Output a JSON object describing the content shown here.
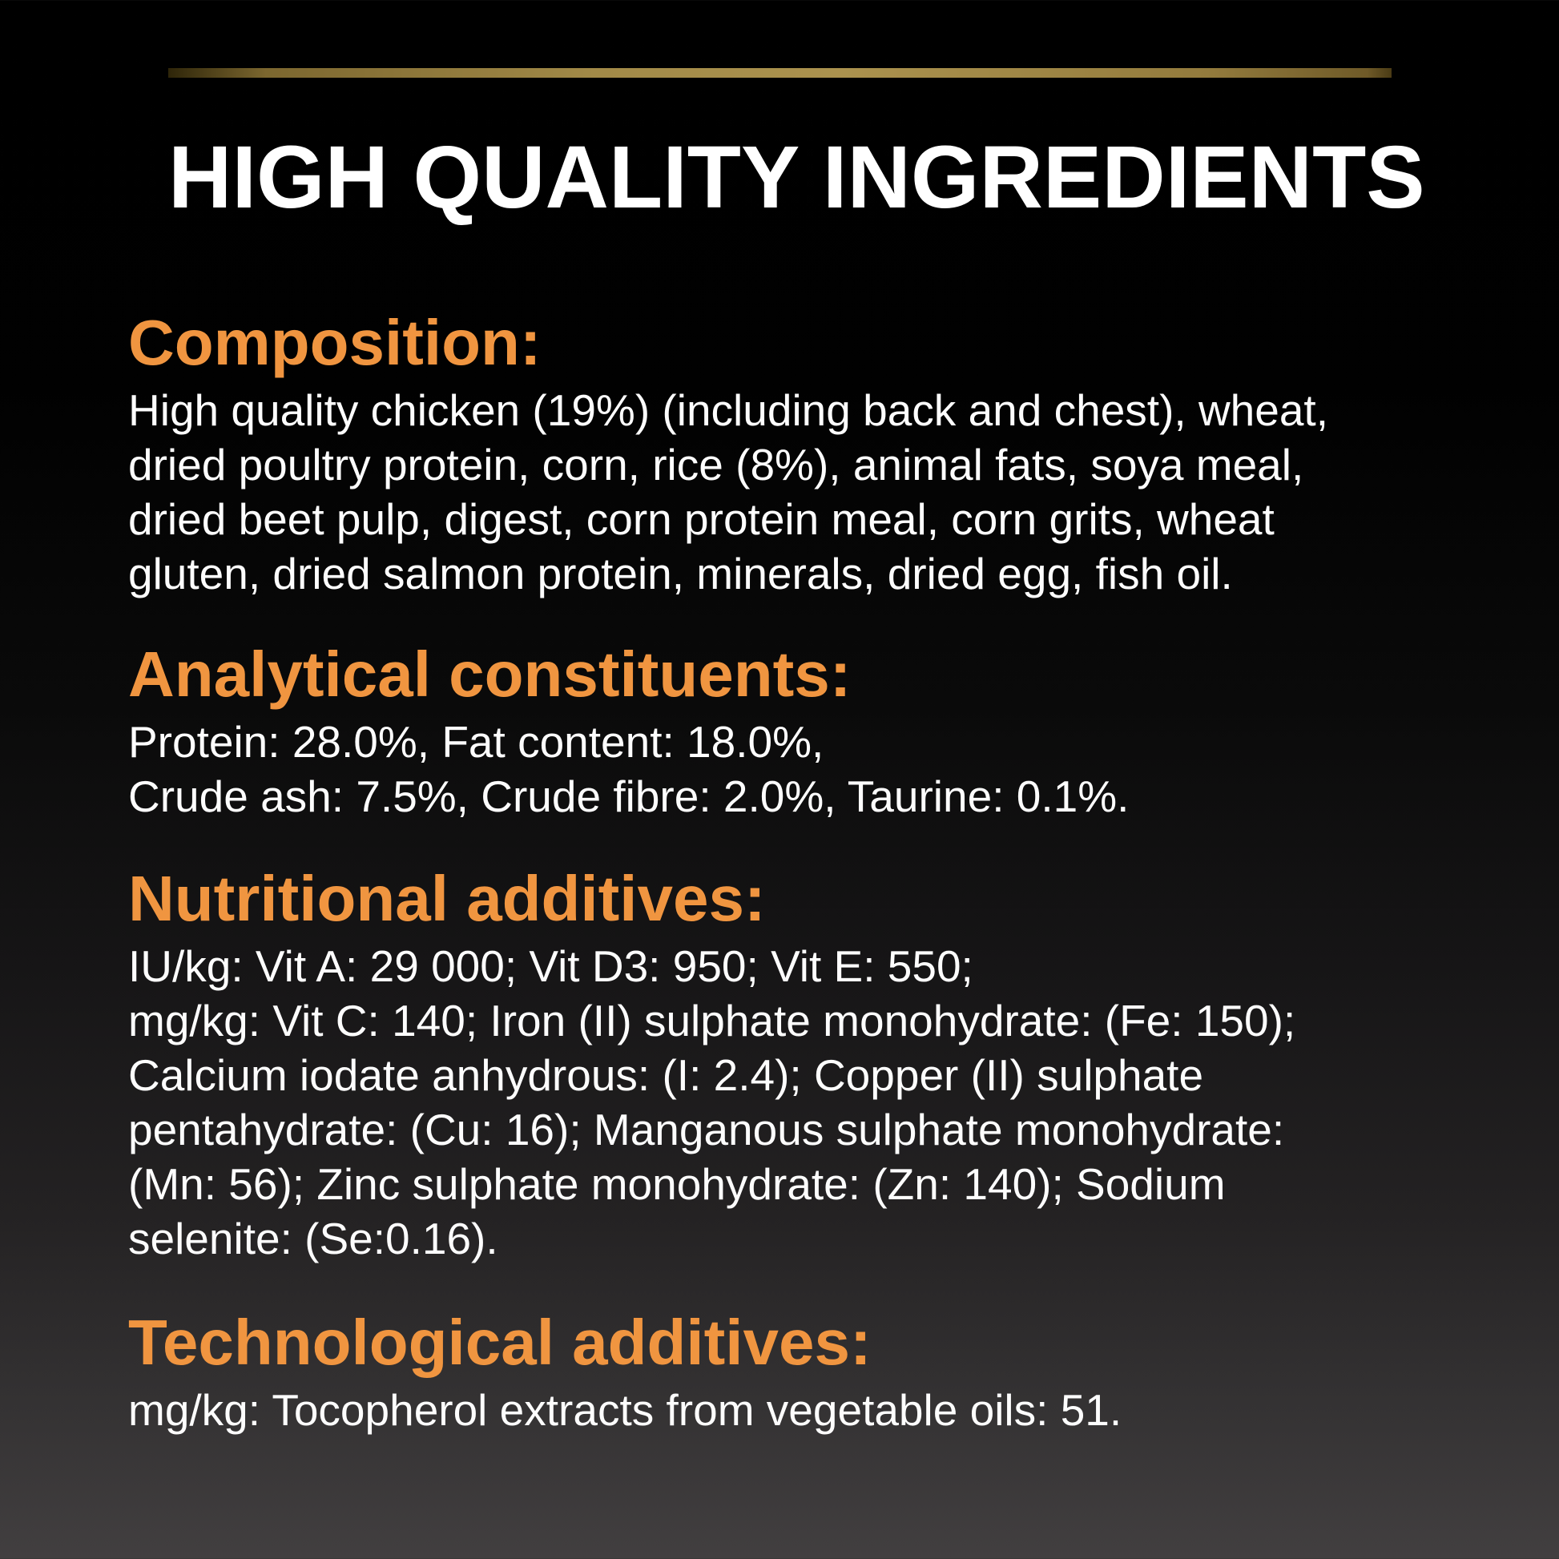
{
  "label": {
    "title": "HIGH QUALITY INGREDIENTS",
    "sections": [
      {
        "id": "composition",
        "heading": "Composition:",
        "body": "High quality chicken (19%) (including back and chest), wheat,\ndried poultry protein, corn, rice (8%), animal fats, soya meal,\ndried beet pulp, digest, corn protein meal, corn grits, wheat\ngluten, dried salmon protein, minerals, dried egg, fish oil."
      },
      {
        "id": "analytical-constituents",
        "heading": "Analytical constituents:",
        "body": "Protein: 28.0%, Fat content: 18.0%,\nCrude ash: 7.5%, Crude fibre: 2.0%, Taurine: 0.1%."
      },
      {
        "id": "nutritional-additives",
        "heading": "Nutritional additives:",
        "body": "IU/kg: Vit A: 29 000; Vit D3: 950; Vit E: 550;\nmg/kg: Vit C: 140; Iron (II) sulphate monohydrate: (Fe: 150);\nCalcium iodate anhydrous: (I: 2.4); Copper (II) sulphate\npentahydrate: (Cu: 16); Manganous sulphate monohydrate:\n(Mn: 56); Zinc sulphate monohydrate: (Zn: 140); Sodium\nselenite: (Se:0.16)."
      },
      {
        "id": "technological-additives",
        "heading": "Technological additives:",
        "body": "mg/kg: Tocopherol extracts from vegetable oils: 51."
      }
    ]
  },
  "colors": {
    "heading_orange": "#F09540",
    "gold_line": "#A28A48",
    "text_white": "#FFFFFF",
    "background_top": "#000000",
    "background_bottom": "#423F40"
  }
}
